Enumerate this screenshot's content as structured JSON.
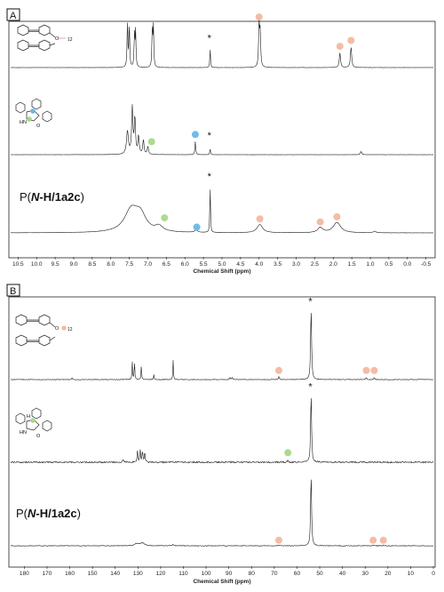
{
  "colors": {
    "orange_marker": "#f4b8a0",
    "green_marker": "#a6d98a",
    "blue_marker": "#69b7ea",
    "trace": "#1a1a1a",
    "marker_edge": "#e08a6a"
  },
  "solvent_marker": "*",
  "chart_data": [
    {
      "panel": "A",
      "type": "line",
      "title": "",
      "xlabel": "Chemical Shift (ppm)",
      "ylabel": "",
      "xlim": [
        10.7,
        -0.7
      ],
      "x_reversed": true,
      "xticks": [
        10.5,
        10.0,
        9.5,
        9.0,
        8.5,
        8.0,
        7.5,
        7.0,
        6.5,
        6.0,
        5.5,
        5.0,
        4.5,
        4.0,
        3.5,
        3.0,
        2.5,
        2.0,
        1.5,
        1.0,
        0.5,
        0.0,
        -0.5
      ],
      "xtick_labels": [
        "10.5",
        "10.0",
        "9.5",
        "9.0",
        "8.5",
        "8.0",
        "7.5",
        "7.0",
        "6.5",
        "6.0",
        "5.5",
        "5.0",
        "4.5",
        "4.0",
        "3.5",
        "3.0",
        "2.5",
        "2.0",
        "1.5",
        "1.0",
        "0.5",
        "0.0",
        "-0.5"
      ],
      "grid": false,
      "series": [
        {
          "label_text": "",
          "peaks": [
            {
              "x": 7.55,
              "h": 0.95,
              "w": 0.012
            },
            {
              "x": 7.5,
              "h": 0.9,
              "w": 0.012
            },
            {
              "x": 7.36,
              "h": 0.7,
              "w": 0.012
            },
            {
              "x": 7.33,
              "h": 0.72,
              "w": 0.012
            },
            {
              "x": 6.88,
              "h": 0.82,
              "w": 0.012
            },
            {
              "x": 6.85,
              "h": 0.82,
              "w": 0.012
            },
            {
              "x": 5.32,
              "h": 0.4,
              "w": 0.01
            },
            {
              "x": 4.0,
              "h": 0.88,
              "w": 0.015
            },
            {
              "x": 3.97,
              "h": 0.7,
              "w": 0.015
            },
            {
              "x": 1.82,
              "h": 0.3,
              "w": 0.02
            },
            {
              "x": 1.52,
              "h": 0.42,
              "w": 0.02
            }
          ],
          "markers": [
            {
              "x": 4.0,
              "color": "orange",
              "y_level": 0.98
            },
            {
              "x": 1.82,
              "color": "orange",
              "y_level": 0.38
            },
            {
              "x": 1.52,
              "color": "orange",
              "y_level": 0.5
            }
          ],
          "star_x": 5.32,
          "star_level": 0.5
        },
        {
          "label_text": "",
          "peaks": [
            {
              "x": 7.55,
              "h": 0.45,
              "w": 0.03
            },
            {
              "x": 7.42,
              "h": 0.9,
              "w": 0.02
            },
            {
              "x": 7.35,
              "h": 0.7,
              "w": 0.02
            },
            {
              "x": 7.25,
              "h": 0.35,
              "w": 0.02
            },
            {
              "x": 7.12,
              "h": 0.28,
              "w": 0.02
            },
            {
              "x": 7.0,
              "h": 0.15,
              "w": 0.02
            },
            {
              "x": 5.72,
              "h": 0.26,
              "w": 0.012
            },
            {
              "x": 5.32,
              "h": 0.12,
              "w": 0.01
            },
            {
              "x": 1.25,
              "h": 0.06,
              "w": 0.02
            }
          ],
          "markers": [
            {
              "x": 6.9,
              "color": "green",
              "y_level": 0.2
            },
            {
              "x": 5.72,
              "color": "blue",
              "y_level": 0.34
            }
          ],
          "star_x": 5.32,
          "star_level": 0.28
        },
        {
          "label_text": "P(N-H/1a2c)",
          "peaks": [
            {
              "x": 7.45,
              "h": 0.42,
              "w": 0.22
            },
            {
              "x": 7.2,
              "h": 0.3,
              "w": 0.18
            },
            {
              "x": 6.7,
              "h": 0.1,
              "w": 0.12
            },
            {
              "x": 5.7,
              "h": 0.04,
              "w": 0.05
            },
            {
              "x": 5.32,
              "h": 0.92,
              "w": 0.01
            },
            {
              "x": 3.98,
              "h": 0.16,
              "w": 0.09
            },
            {
              "x": 2.35,
              "h": 0.1,
              "w": 0.08
            },
            {
              "x": 1.9,
              "h": 0.2,
              "w": 0.12
            },
            {
              "x": 0.88,
              "h": 0.03,
              "w": 0.04
            }
          ],
          "markers": [
            {
              "x": 6.55,
              "color": "green",
              "y_level": 0.24
            },
            {
              "x": 5.68,
              "color": "blue",
              "y_level": 0.06
            },
            {
              "x": 3.98,
              "color": "orange",
              "y_level": 0.22
            },
            {
              "x": 2.35,
              "color": "orange",
              "y_level": 0.16
            },
            {
              "x": 1.9,
              "color": "orange",
              "y_level": 0.26
            }
          ],
          "star_x": 5.32,
          "star_level": 1.0
        }
      ]
    },
    {
      "panel": "B",
      "type": "line",
      "title": "",
      "xlabel": "Chemical Shift (ppm)",
      "ylabel": "",
      "xlim": [
        186,
        0
      ],
      "x_reversed": true,
      "xticks": [
        180,
        170,
        160,
        150,
        140,
        130,
        120,
        110,
        100,
        90,
        80,
        70,
        60,
        50,
        40,
        30,
        20,
        10,
        0
      ],
      "xtick_labels": [
        "180",
        "170",
        "160",
        "150",
        "140",
        "130",
        "120",
        "110",
        "100",
        "90",
        "80",
        "70",
        "60",
        "50",
        "40",
        "30",
        "20",
        "10",
        "0"
      ],
      "grid": false,
      "series": [
        {
          "label_text": "",
          "peaks": [
            {
              "x": 159,
              "h": 0.03,
              "w": 0.2
            },
            {
              "x": 132.5,
              "h": 0.25,
              "w": 0.15
            },
            {
              "x": 131.5,
              "h": 0.25,
              "w": 0.15
            },
            {
              "x": 128.5,
              "h": 0.2,
              "w": 0.15
            },
            {
              "x": 123.0,
              "h": 0.07,
              "w": 0.15
            },
            {
              "x": 114.5,
              "h": 0.27,
              "w": 0.15
            },
            {
              "x": 89.5,
              "h": 0.03,
              "w": 0.2
            },
            {
              "x": 88.5,
              "h": 0.03,
              "w": 0.2
            },
            {
              "x": 68.0,
              "h": 0.04,
              "w": 0.2
            },
            {
              "x": 53.8,
              "h": 1.0,
              "w": 0.25
            },
            {
              "x": 29.5,
              "h": 0.03,
              "w": 0.2
            },
            {
              "x": 26.0,
              "h": 0.03,
              "w": 0.2
            }
          ],
          "markers": [
            {
              "x": 68.0,
              "color": "orange",
              "y_level": 0.09
            },
            {
              "x": 29.5,
              "color": "orange",
              "y_level": 0.09
            },
            {
              "x": 26.0,
              "color": "orange",
              "y_level": 0.09
            }
          ],
          "star_x": 53.8,
          "star_level": 1.03
        },
        {
          "label_text": "",
          "peaks": [
            {
              "x": 136.5,
              "h": 0.05,
              "w": 0.2
            },
            {
              "x": 130.2,
              "h": 0.16,
              "w": 0.2
            },
            {
              "x": 129.0,
              "h": 0.18,
              "w": 0.2
            },
            {
              "x": 128.0,
              "h": 0.16,
              "w": 0.2
            },
            {
              "x": 127.0,
              "h": 0.15,
              "w": 0.2
            },
            {
              "x": 64.0,
              "h": 0.03,
              "w": 0.2
            },
            {
              "x": 53.8,
              "h": 1.0,
              "w": 0.25
            }
          ],
          "markers": [
            {
              "x": 64.0,
              "color": "green",
              "y_level": 0.1
            }
          ],
          "star_x": 53.8,
          "star_level": 1.03
        },
        {
          "label_text": "P(N-H/1a2c)",
          "peaks": [
            {
              "x": 130.5,
              "h": 0.03,
              "w": 1.2
            },
            {
              "x": 128.0,
              "h": 0.04,
              "w": 1.0
            },
            {
              "x": 114.5,
              "h": 0.02,
              "w": 0.3
            },
            {
              "x": 68.0,
              "h": 0.01,
              "w": 0.3
            },
            {
              "x": 53.8,
              "h": 1.0,
              "w": 0.25
            },
            {
              "x": 26.5,
              "h": 0.01,
              "w": 0.3
            },
            {
              "x": 22.0,
              "h": 0.01,
              "w": 0.3
            }
          ],
          "markers": [
            {
              "x": 68.0,
              "color": "orange",
              "y_level": 0.04
            },
            {
              "x": 26.5,
              "color": "orange",
              "y_level": 0.04
            },
            {
              "x": 22.0,
              "color": "orange",
              "y_level": 0.04
            }
          ],
          "star_x": null,
          "star_level": null
        }
      ]
    }
  ],
  "structures": {
    "monomer_subscript": "12",
    "lactam_nh": "HN",
    "lactam_o": "O",
    "ch_h": "H"
  }
}
